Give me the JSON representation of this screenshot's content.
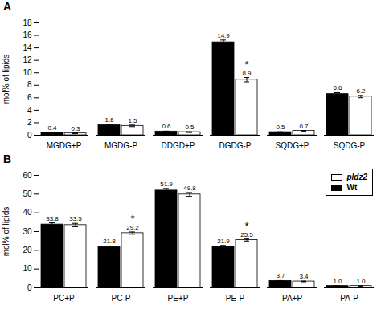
{
  "chart_data": [
    {
      "type": "bar",
      "title": "A",
      "categories": [
        "MGDG+P",
        "MGDG-P",
        "DDGD+P",
        "DGDG-P",
        "SQDG+P",
        "SQDG-P"
      ],
      "series": [
        {
          "name": "Wt",
          "color": "#000000",
          "values": [
            0.4,
            1.6,
            0.6,
            14.9,
            0.5,
            6.6
          ],
          "errors": [
            0.07,
            0.12,
            0.06,
            0.35,
            0.05,
            0.22
          ]
        },
        {
          "name": "pldz2",
          "color": "#ffffff",
          "values": [
            0.3,
            1.5,
            0.5,
            8.9,
            0.7,
            6.2
          ],
          "errors": [
            0.05,
            0.12,
            0.06,
            0.35,
            0.07,
            0.18
          ]
        }
      ],
      "ylabel": "mol% of lipids",
      "ylim": [
        0,
        18
      ],
      "yticks": [
        0,
        2,
        4,
        6,
        8,
        10,
        12,
        14,
        16,
        18
      ],
      "grid": false,
      "data_labels": true,
      "annotations": [
        {
          "text": "*",
          "category": "DGDG-P",
          "series": "pldz2"
        }
      ]
    },
    {
      "type": "bar",
      "title": "B",
      "categories": [
        "PC+P",
        "PC-P",
        "PE+P",
        "PE-P",
        "PA+P",
        "PA-P"
      ],
      "series": [
        {
          "name": "Wt",
          "color": "#000000",
          "values": [
            33.8,
            21.8,
            51.9,
            21.9,
            3.7,
            1.0
          ],
          "errors": [
            0.9,
            0.5,
            1.1,
            0.7,
            0.18,
            0.06
          ],
          "value_labels": [
            "33.8",
            "21.8",
            "51.9",
            "21.9",
            "3.7",
            "1.0"
          ]
        },
        {
          "name": "pldz2",
          "color": "#ffffff",
          "values": [
            33.5,
            29.2,
            49.8,
            25.5,
            3.4,
            1.0
          ],
          "errors": [
            0.9,
            0.6,
            1.0,
            0.55,
            0.18,
            0.06
          ],
          "value_labels": [
            "33.5",
            "29.2",
            "49.8",
            "25.5",
            "3.4",
            "1.0"
          ]
        }
      ],
      "ylabel": "mol% of lipids",
      "ylim": [
        0,
        60
      ],
      "yticks": [
        0,
        10,
        20,
        30,
        40,
        50,
        60
      ],
      "grid": false,
      "data_labels": true,
      "legend": "upper right",
      "annotations": [
        {
          "text": "*",
          "category": "PC-P",
          "series": "pldz2"
        },
        {
          "text": "*",
          "category": "PE-P",
          "series": "pldz2"
        }
      ]
    }
  ]
}
